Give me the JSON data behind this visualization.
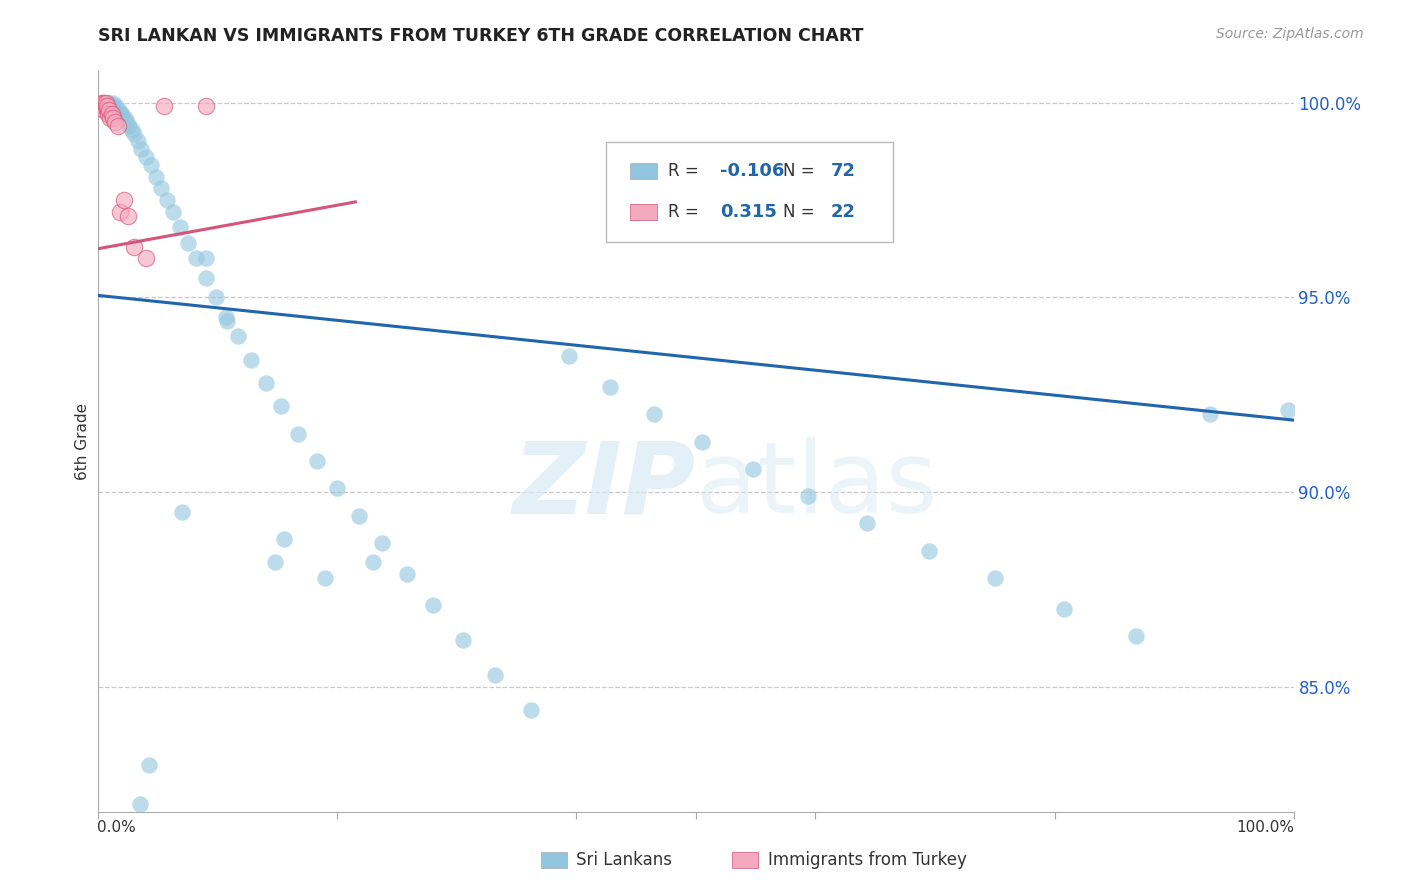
{
  "title": "SRI LANKAN VS IMMIGRANTS FROM TURKEY 6TH GRADE CORRELATION CHART",
  "source": "Source: ZipAtlas.com",
  "ylabel": "6th Grade",
  "watermark": "ZIPatlas",
  "ytick_values": [
    1.0,
    0.95,
    0.9,
    0.85
  ],
  "xmin": 0.0,
  "xmax": 1.0,
  "ymin": 0.818,
  "ymax": 1.008,
  "blue_color": "#92c5de",
  "blue_line_color": "#2166ac",
  "pink_color": "#f4a9be",
  "pink_line_color": "#d6537a",
  "legend_R_blue": "-0.106",
  "legend_N_blue": "72",
  "legend_R_pink": "0.315",
  "legend_N_pink": "22",
  "sri_lanka_label": "Sri Lankans",
  "turkey_label": "Immigrants from Turkey",
  "blue_trend_x": [
    0.0,
    1.0
  ],
  "blue_trend_y": [
    0.9505,
    0.9185
  ],
  "pink_trend_x": [
    0.0,
    0.215
  ],
  "pink_trend_y": [
    0.9625,
    0.9745
  ],
  "blue_x": [
    0.003,
    0.004,
    0.005,
    0.006,
    0.006,
    0.007,
    0.007,
    0.008,
    0.009,
    0.01,
    0.011,
    0.012,
    0.013,
    0.015,
    0.017,
    0.018,
    0.02,
    0.022,
    0.024,
    0.026,
    0.028,
    0.03,
    0.033,
    0.036,
    0.04,
    0.044,
    0.048,
    0.052,
    0.057,
    0.062,
    0.068,
    0.075,
    0.082,
    0.09,
    0.098,
    0.107,
    0.117,
    0.128,
    0.14,
    0.153,
    0.167,
    0.183,
    0.2,
    0.218,
    0.237,
    0.258,
    0.28,
    0.305,
    0.332,
    0.362,
    0.394,
    0.428,
    0.465,
    0.505,
    0.548,
    0.594,
    0.643,
    0.695,
    0.75,
    0.808,
    0.868,
    0.93,
    0.995,
    0.19,
    0.148,
    0.23,
    0.09,
    0.155,
    0.07,
    0.108,
    0.042,
    0.035
  ],
  "blue_y": [
    1.0,
    0.999,
    1.0,
    0.999,
    1.0,
    1.0,
    0.999,
    1.0,
    1.0,
    0.999,
    0.999,
    1.0,
    0.998,
    0.999,
    0.998,
    0.997,
    0.997,
    0.996,
    0.995,
    0.994,
    0.993,
    0.992,
    0.99,
    0.988,
    0.986,
    0.984,
    0.981,
    0.978,
    0.975,
    0.972,
    0.968,
    0.964,
    0.96,
    0.955,
    0.95,
    0.945,
    0.94,
    0.934,
    0.928,
    0.922,
    0.915,
    0.908,
    0.901,
    0.894,
    0.887,
    0.879,
    0.871,
    0.862,
    0.853,
    0.844,
    0.935,
    0.927,
    0.92,
    0.913,
    0.906,
    0.899,
    0.892,
    0.885,
    0.878,
    0.87,
    0.863,
    0.92,
    0.921,
    0.878,
    0.882,
    0.882,
    0.96,
    0.888,
    0.895,
    0.944,
    0.83,
    0.82
  ],
  "pink_x": [
    0.003,
    0.004,
    0.005,
    0.005,
    0.006,
    0.006,
    0.007,
    0.007,
    0.008,
    0.009,
    0.01,
    0.011,
    0.012,
    0.014,
    0.016,
    0.018,
    0.021,
    0.025,
    0.03,
    0.04,
    0.055,
    0.09
  ],
  "pink_y": [
    1.0,
    0.999,
    1.0,
    0.998,
    0.999,
    1.0,
    0.998,
    0.999,
    0.997,
    0.998,
    0.996,
    0.997,
    0.996,
    0.995,
    0.994,
    0.972,
    0.975,
    0.971,
    0.963,
    0.96,
    0.999,
    0.999
  ]
}
